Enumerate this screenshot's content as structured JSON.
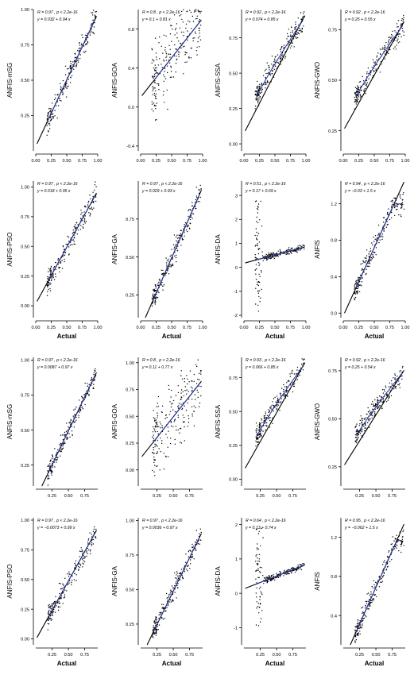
{
  "colors": {
    "points": "#000000",
    "fit_line": "#000000",
    "smooth_line": "#2233aa",
    "axis": "#000000"
  },
  "chart_data": [
    {
      "type": "scatter",
      "ylabel": "ANFIS-mSG",
      "xlabel": "",
      "stats": "R = 0.97 , p < 2.2e-16",
      "equation": "y = 0.032 + 0.94 x",
      "xlim": [
        0,
        1
      ],
      "ylim": [
        0,
        1
      ],
      "xticks": [
        "0.00",
        "0.25",
        "0.50",
        "0.75",
        "1.00"
      ],
      "yticks": [
        "0.25",
        "0.50",
        "0.75",
        "1.00"
      ],
      "ytick_vals": [
        0.25,
        0.5,
        0.75,
        1.0
      ],
      "fit": {
        "intercept": 0.032,
        "slope": 0.94
      },
      "pattern": "mono"
    },
    {
      "type": "scatter",
      "ylabel": "ANFIS-GOA",
      "xlabel": "",
      "stats": "R = 0.8 , p < 2.2e-16",
      "equation": "y = 0.1 + 0.81 x",
      "xlim": [
        0,
        1
      ],
      "ylim": [
        -0.45,
        1.0
      ],
      "xticks": [
        "0.00",
        "0.25",
        "0.50",
        "0.75",
        "1.00"
      ],
      "yticks": [
        "-0.4",
        "0.0",
        "0.4",
        "0.8"
      ],
      "ytick_vals": [
        -0.4,
        0.0,
        0.4,
        0.8
      ],
      "fit": {
        "intercept": 0.1,
        "slope": 0.81
      },
      "pattern": "noisy"
    },
    {
      "type": "scatter",
      "ylabel": "ANFIS-SSA",
      "xlabel": "",
      "stats": "R = 0.92 , p < 2.2e-16",
      "equation": "y = 0.074 + 0.85 x",
      "xlim": [
        0,
        1
      ],
      "ylim": [
        -0.05,
        0.95
      ],
      "xticks": [
        "0.00",
        "0.25",
        "0.50",
        "0.75",
        "1.00"
      ],
      "yticks": [
        "0.00",
        "0.25",
        "0.50",
        "0.75"
      ],
      "ytick_vals": [
        0,
        0.25,
        0.5,
        0.75
      ],
      "fit": {
        "intercept": 0.074,
        "slope": 0.85
      },
      "pattern": "curve"
    },
    {
      "type": "scatter",
      "ylabel": "ANFIS-GWO",
      "xlabel": "",
      "stats": "R = 0.92 , p < 2.2e-16",
      "equation": "y = 0.25 + 0.55 x",
      "xlim": [
        0,
        1
      ],
      "ylim": [
        0.15,
        0.85
      ],
      "xticks": [
        "0.00",
        "0.25",
        "0.50",
        "0.75",
        "1.00"
      ],
      "yticks": [
        "0.25",
        "0.50",
        "0.75"
      ],
      "ytick_vals": [
        0.25,
        0.5,
        0.75
      ],
      "fit": {
        "intercept": 0.25,
        "slope": 0.55
      },
      "pattern": "curve"
    },
    {
      "type": "scatter",
      "ylabel": "ANFIS-PSO",
      "xlabel": "Actual",
      "stats": "R = 0.97 , p < 2.2e-16",
      "equation": "y = 0.018 + 0.95 x",
      "xlim": [
        0,
        1
      ],
      "ylim": [
        -0.1,
        1.05
      ],
      "xticks": [
        "0.00",
        "0.25",
        "0.50",
        "0.75",
        "1.00"
      ],
      "yticks": [
        "0.00",
        "0.25",
        "0.50",
        "0.75",
        "1.00"
      ],
      "ytick_vals": [
        0,
        0.25,
        0.5,
        0.75,
        1.0
      ],
      "fit": {
        "intercept": 0.018,
        "slope": 0.95
      },
      "pattern": "mono"
    },
    {
      "type": "scatter",
      "ylabel": "ANFIS-GA",
      "xlabel": "Actual",
      "stats": "R = 0.97 , p < 2.2e-16",
      "equation": "y = 0.029 + 0.93 x",
      "xlim": [
        0,
        1
      ],
      "ylim": [
        0.1,
        1.0
      ],
      "xticks": [
        "0.00",
        "0.25",
        "0.50",
        "0.75",
        "1.00"
      ],
      "yticks": [
        "0.25",
        "0.50",
        "0.75"
      ],
      "ytick_vals": [
        0.25,
        0.5,
        0.75
      ],
      "fit": {
        "intercept": 0.029,
        "slope": 0.93
      },
      "pattern": "mono"
    },
    {
      "type": "scatter",
      "ylabel": "ANFIS-DA",
      "xlabel": "Actual",
      "stats": "R = 0.51 , p < 2.2e-16",
      "equation": "y = 0.17 + 0.69 x",
      "xlim": [
        0,
        1
      ],
      "ylim": [
        -2.1,
        3.6
      ],
      "xticks": [
        "0.00",
        "0.25",
        "0.50",
        "0.75",
        "1.00"
      ],
      "yticks": [
        "-2",
        "-1",
        "0",
        "1",
        "2",
        "3"
      ],
      "ytick_vals": [
        -2,
        -1,
        0,
        1,
        2,
        3
      ],
      "fit": {
        "intercept": 0.17,
        "slope": 0.69
      },
      "pattern": "spike"
    },
    {
      "type": "scatter",
      "ylabel": "ANFIS",
      "xlabel": "Actual",
      "stats": "R = 0.94 , p < 2.2e-16",
      "equation": "y = −0.03 + 1.5 x",
      "xlim": [
        0,
        1
      ],
      "ylim": [
        -0.05,
        1.45
      ],
      "xticks": [
        "0.00",
        "0.25",
        "0.50",
        "0.75",
        "1.00"
      ],
      "yticks": [
        "0.0",
        "0.4",
        "0.8",
        "1.2"
      ],
      "ytick_vals": [
        0,
        0.4,
        0.8,
        1.2
      ],
      "fit": {
        "intercept": -0.03,
        "slope": 1.5
      },
      "pattern": "sat"
    },
    {
      "type": "scatter",
      "ylabel": "ANFIS-mSG",
      "xlabel": "",
      "stats": "R = 0.97 , p < 2.2e-16",
      "equation": "y = 0.0087 + 0.97 x",
      "xlim": [
        0,
        0.95
      ],
      "ylim": [
        0.1,
        1.02
      ],
      "xticks": [
        "0.25",
        "0.50",
        "0.75"
      ],
      "yticks": [
        "0.25",
        "0.50",
        "0.75",
        "1.00"
      ],
      "ytick_vals": [
        0.25,
        0.5,
        0.75,
        1.0
      ],
      "fit": {
        "intercept": 0.0087,
        "slope": 0.97
      },
      "pattern": "mono"
    },
    {
      "type": "scatter",
      "ylabel": "ANFIS-GOA",
      "xlabel": "",
      "stats": "R = 0.8 , p < 2.2e-16",
      "equation": "y = 0.11 + 0.77 x",
      "xlim": [
        0,
        0.95
      ],
      "ylim": [
        -0.15,
        1.05
      ],
      "xticks": [
        "0.25",
        "0.50",
        "0.75"
      ],
      "yticks": [
        "0.00",
        "0.25",
        "0.50",
        "0.75",
        "1.00"
      ],
      "ytick_vals": [
        0,
        0.25,
        0.5,
        0.75,
        1.0
      ],
      "fit": {
        "intercept": 0.11,
        "slope": 0.77
      },
      "pattern": "noisy"
    },
    {
      "type": "scatter",
      "ylabel": "ANFIS-SSA",
      "xlabel": "",
      "stats": "R = 0.93 , p < 2.2e-16",
      "equation": "y = 0.066 + 0.85 x",
      "xlim": [
        0,
        0.95
      ],
      "ylim": [
        -0.05,
        0.9
      ],
      "xticks": [
        "0.25",
        "0.50",
        "0.75"
      ],
      "yticks": [
        "0.00",
        "0.25",
        "0.50",
        "0.75"
      ],
      "ytick_vals": [
        0,
        0.25,
        0.5,
        0.75
      ],
      "fit": {
        "intercept": 0.066,
        "slope": 0.85
      },
      "pattern": "curve"
    },
    {
      "type": "scatter",
      "ylabel": "ANFIS-GWO",
      "xlabel": "",
      "stats": "R = 0.92 , p < 2.2e-16",
      "equation": "y = 0.25 + 0.54 x",
      "xlim": [
        0,
        0.95
      ],
      "ylim": [
        0.15,
        0.82
      ],
      "xticks": [
        "0.25",
        "0.50",
        "0.75"
      ],
      "yticks": [
        "0.25",
        "0.50",
        "0.75"
      ],
      "ytick_vals": [
        0.25,
        0.5,
        0.75
      ],
      "fit": {
        "intercept": 0.25,
        "slope": 0.54
      },
      "pattern": "curve"
    },
    {
      "type": "scatter",
      "ylabel": "ANFIS-PSO",
      "xlabel": "Actual",
      "stats": "R = 0.97 , p < 2.2e-16",
      "equation": "y = −0.0073 + 0.99 x",
      "xlim": [
        0,
        0.95
      ],
      "ylim": [
        -0.05,
        1.02
      ],
      "xticks": [
        "0.25",
        "0.50",
        "0.75"
      ],
      "yticks": [
        "0.00",
        "0.25",
        "0.50",
        "0.75",
        "1.00"
      ],
      "ytick_vals": [
        0,
        0.25,
        0.5,
        0.75,
        1.0
      ],
      "fit": {
        "intercept": -0.0073,
        "slope": 0.99
      },
      "pattern": "mono"
    },
    {
      "type": "scatter",
      "ylabel": "ANFIS-GA",
      "xlabel": "Actual",
      "stats": "R = 0.97 , p < 2.2e-16",
      "equation": "y = 0.0036 + 0.97 x",
      "xlim": [
        0,
        0.95
      ],
      "ylim": [
        0.1,
        1.02
      ],
      "xticks": [
        "0.25",
        "0.50",
        "0.75"
      ],
      "yticks": [
        "0.25",
        "0.50",
        "0.75",
        "1.00"
      ],
      "ytick_vals": [
        0.25,
        0.5,
        0.75,
        1.0
      ],
      "fit": {
        "intercept": 0.0036,
        "slope": 0.97
      },
      "pattern": "mono"
    },
    {
      "type": "scatter",
      "ylabel": "ANFIS-DA",
      "xlabel": "Actual",
      "stats": "R = 0.64 , p < 2.2e-16",
      "equation": "y = 0.13 + 0.74 x",
      "xlim": [
        0,
        0.95
      ],
      "ylim": [
        -1.5,
        2.2
      ],
      "xticks": [
        "0.25",
        "0.50",
        "0.75"
      ],
      "yticks": [
        "-1",
        "0",
        "1",
        "2"
      ],
      "ytick_vals": [
        -1,
        0,
        1,
        2
      ],
      "fit": {
        "intercept": 0.13,
        "slope": 0.74
      },
      "pattern": "spike"
    },
    {
      "type": "scatter",
      "ylabel": "ANFIS",
      "xlabel": "Actual",
      "stats": "R = 0.95 , p < 2.2e-16",
      "equation": "y = −0.062 + 1.5 x",
      "xlim": [
        0,
        0.95
      ],
      "ylim": [
        0.1,
        1.4
      ],
      "xticks": [
        "0.25",
        "0.50",
        "0.75"
      ],
      "yticks": [
        "0.4",
        "0.8",
        "1.2"
      ],
      "ytick_vals": [
        0.4,
        0.8,
        1.2
      ],
      "fit": {
        "intercept": -0.062,
        "slope": 1.5
      },
      "pattern": "sat"
    }
  ]
}
